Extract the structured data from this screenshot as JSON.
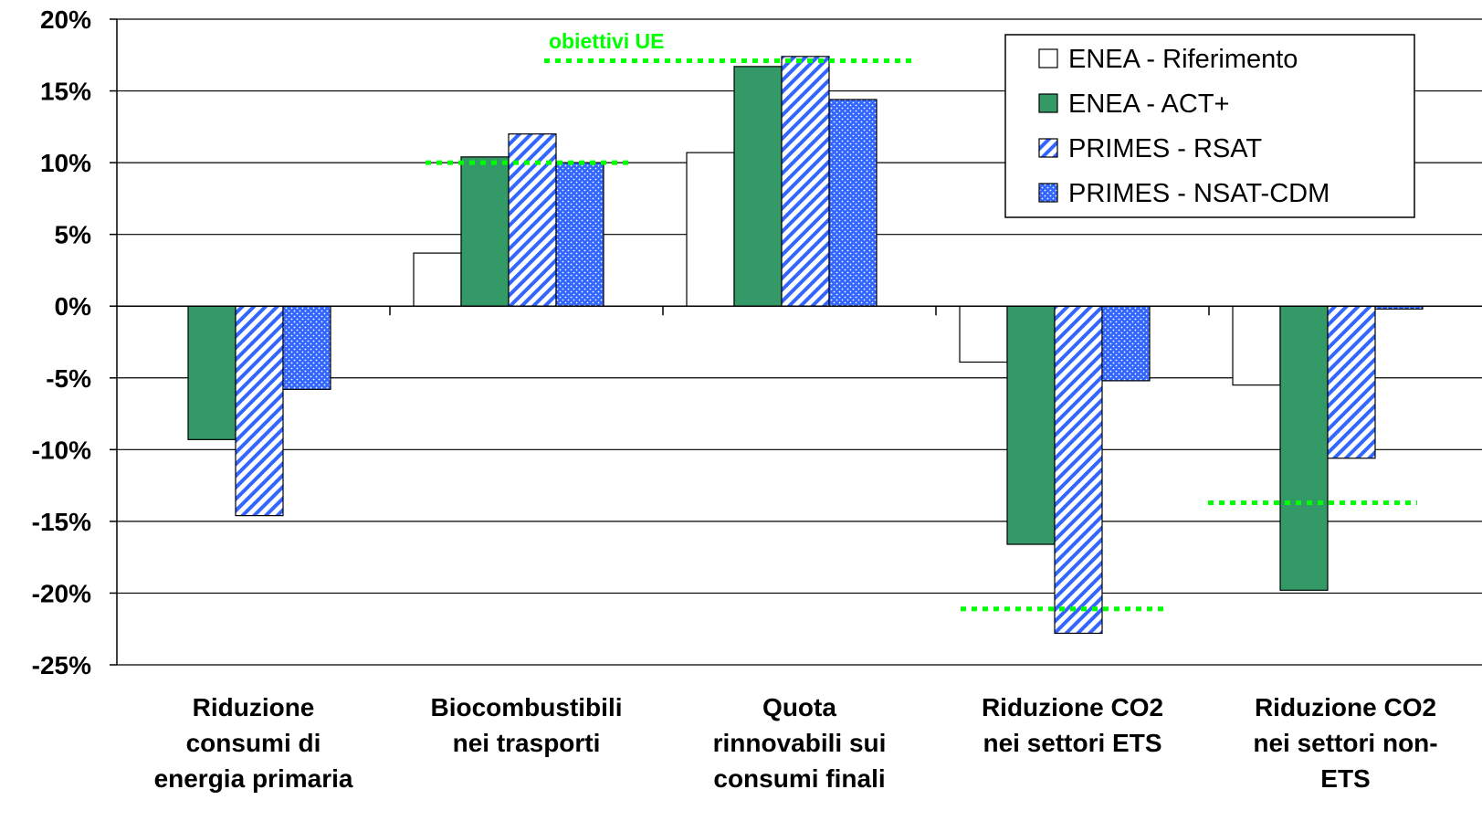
{
  "chart_data": {
    "type": "bar",
    "categories": [
      [
        "Riduzione",
        "consumi di",
        "energia primaria"
      ],
      [
        "Biocombustibili",
        "nei trasporti"
      ],
      [
        "Quota",
        "rinnovabili sui",
        "consumi finali"
      ],
      [
        "Riduzione CO2",
        "nei settori ETS"
      ],
      [
        "Riduzione CO2",
        "nei settori non-",
        "ETS"
      ]
    ],
    "series": [
      {
        "name": "ENEA - Riferimento",
        "pattern": "white",
        "values": [
          null,
          3.7,
          10.7,
          -3.9,
          -5.5
        ]
      },
      {
        "name": "ENEA - ACT+",
        "pattern": "green",
        "values": [
          -9.3,
          10.4,
          16.7,
          -16.6,
          -19.8
        ]
      },
      {
        "name": "PRIMES - RSAT",
        "pattern": "hatch",
        "values": [
          -14.6,
          12.0,
          17.4,
          -22.8,
          -10.6
        ]
      },
      {
        "name": "PRIMES - NSAT-CDM",
        "pattern": "dots",
        "values": [
          -5.8,
          10.0,
          14.4,
          -5.2,
          -0.2
        ]
      }
    ],
    "targets": {
      "label": "obiettivi UE",
      "values": [
        null,
        10.0,
        17.1,
        -21.1,
        -13.7
      ]
    },
    "yticks": [
      "20%",
      "15%",
      "10%",
      "5%",
      "0%",
      "-5%",
      "-10%",
      "-15%",
      "-20%",
      "-25%"
    ],
    "ylim": [
      -25,
      20
    ],
    "grid": true,
    "legend_position": "top-right",
    "colors": {
      "green": "#339966",
      "blue": "#3366ff",
      "target": "#00ff00",
      "axis": "#000000"
    }
  }
}
